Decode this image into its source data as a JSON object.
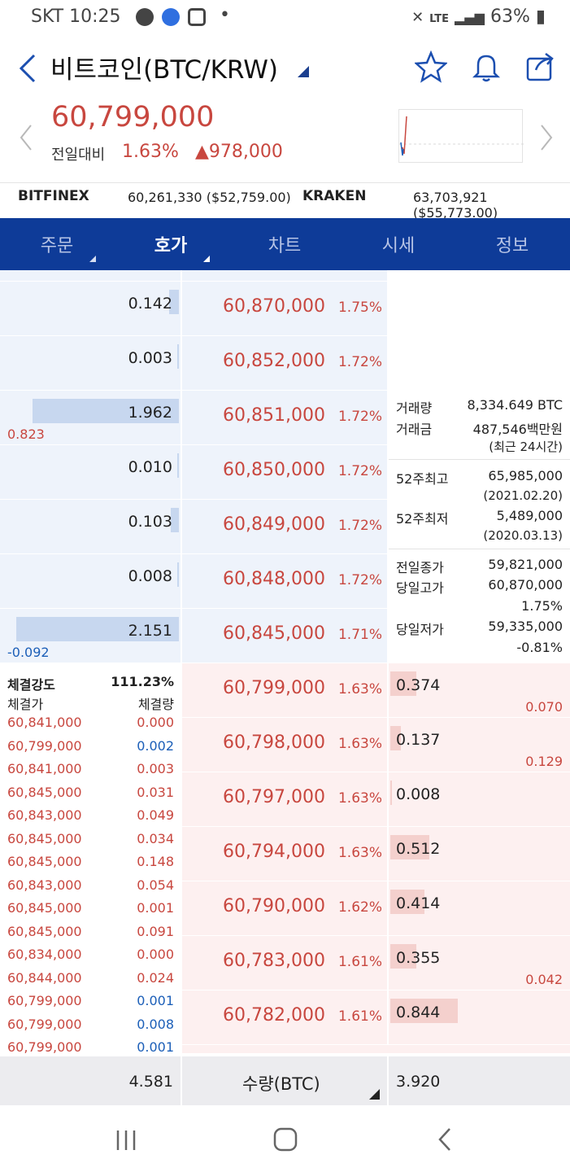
{
  "status": {
    "carrier_time": "SKT 10:25",
    "dot": "•",
    "network": "LTE",
    "battery": "63%"
  },
  "header": {
    "title": "비트코인(BTC/KRW)",
    "icons": [
      "back-arrow-icon",
      "dropdown-triangle-icon",
      "star-icon",
      "bell-icon",
      "share-icon"
    ]
  },
  "price": {
    "current": "60,799,000",
    "prev_label": "전일대비",
    "change_pct": "1.63%",
    "change_amt": "978,000",
    "up_arrow": "▲"
  },
  "exchanges": [
    {
      "name": "BITFINEX",
      "value": "60,261,330 ($52,759.00)"
    },
    {
      "name": "KRAKEN",
      "value": "63,703,921 ($55,773.00)"
    }
  ],
  "tabs": [
    {
      "label": "주문"
    },
    {
      "label": "호가"
    },
    {
      "label": "차트"
    },
    {
      "label": "시세"
    },
    {
      "label": "정보"
    }
  ],
  "asks": [
    {
      "qty": "0.142",
      "price": "60,870,000",
      "rate": "1.75%",
      "bar": 0.06
    },
    {
      "qty": "0.003",
      "price": "60,852,000",
      "rate": "1.72%",
      "bar": 0.0
    },
    {
      "qty": "1.962",
      "price": "60,851,000",
      "rate": "1.72%",
      "bar": 0.9,
      "chg": "0.823"
    },
    {
      "qty": "0.010",
      "price": "60,850,000",
      "rate": "1.72%",
      "bar": 0.01
    },
    {
      "qty": "0.103",
      "price": "60,849,000",
      "rate": "1.72%",
      "bar": 0.05
    },
    {
      "qty": "0.008",
      "price": "60,848,000",
      "rate": "1.72%",
      "bar": 0.01
    },
    {
      "qty": "2.151",
      "price": "60,845,000",
      "rate": "1.71%",
      "bar": 1.0,
      "chg": "-0.092"
    }
  ],
  "bids": [
    {
      "price": "60,799,000",
      "rate": "1.63%",
      "qty": "0.374",
      "bar": 0.2,
      "chg": "0.070"
    },
    {
      "price": "60,798,000",
      "rate": "1.63%",
      "qty": "0.137",
      "bar": 0.08,
      "chg": "0.129"
    },
    {
      "price": "60,797,000",
      "rate": "1.63%",
      "qty": "0.008",
      "bar": 0.01
    },
    {
      "price": "60,794,000",
      "rate": "1.63%",
      "qty": "0.512",
      "bar": 0.3
    },
    {
      "price": "60,790,000",
      "rate": "1.62%",
      "qty": "0.414",
      "bar": 0.26
    },
    {
      "price": "60,783,000",
      "rate": "1.61%",
      "qty": "0.355",
      "bar": 0.2,
      "chg": "0.042"
    },
    {
      "price": "60,782,000",
      "rate": "1.61%",
      "qty": "0.844",
      "bar": 0.52
    }
  ],
  "stats": {
    "volume_label": "거래량",
    "volume": "8,334.649 BTC",
    "amount_label": "거래금",
    "amount": "487,546백만원",
    "period": "(최근 24시간)",
    "high52_label": "52주최고",
    "high52": "65,985,000",
    "high52_date": "(2021.02.20)",
    "low52_label": "52주최저",
    "low52": "5,489,000",
    "low52_date": "(2020.03.13)",
    "prev_close_label": "전일종가",
    "prev_close": "59,821,000",
    "day_high_label": "당일고가",
    "day_high": "60,870,000",
    "day_high_pct": "1.75%",
    "day_low_label": "당일저가",
    "day_low": "59,335,000",
    "day_low_pct": "-0.81%"
  },
  "trades": {
    "strength_label": "체결강도",
    "strength": "111.23%",
    "price_header": "체결가",
    "qty_header": "체결량",
    "rows": [
      {
        "price": "60,841,000",
        "qty": "0.000",
        "side": "sell"
      },
      {
        "price": "60,799,000",
        "qty": "0.002",
        "side": "buy"
      },
      {
        "price": "60,841,000",
        "qty": "0.003",
        "side": "sell"
      },
      {
        "price": "60,845,000",
        "qty": "0.031",
        "side": "sell"
      },
      {
        "price": "60,843,000",
        "qty": "0.049",
        "side": "sell"
      },
      {
        "price": "60,845,000",
        "qty": "0.034",
        "side": "sell"
      },
      {
        "price": "60,845,000",
        "qty": "0.148",
        "side": "sell"
      },
      {
        "price": "60,843,000",
        "qty": "0.054",
        "side": "sell"
      },
      {
        "price": "60,845,000",
        "qty": "0.001",
        "side": "sell"
      },
      {
        "price": "60,845,000",
        "qty": "0.091",
        "side": "sell"
      },
      {
        "price": "60,834,000",
        "qty": "0.000",
        "side": "sell"
      },
      {
        "price": "60,844,000",
        "qty": "0.024",
        "side": "sell"
      },
      {
        "price": "60,799,000",
        "qty": "0.001",
        "side": "buy"
      },
      {
        "price": "60,799,000",
        "qty": "0.008",
        "side": "buy"
      },
      {
        "price": "60,799,000",
        "qty": "0.001",
        "side": "buy"
      }
    ]
  },
  "footer": {
    "ask_total": "4.581",
    "unit_label": "수량(BTC)",
    "bid_total": "3.920"
  },
  "colors": {
    "tab_bar": "#0e3b98",
    "up": "#c8473f",
    "down": "#1c5fb8",
    "ask_bg": "#eef3fb",
    "bid_bg": "#fdf0f0"
  }
}
